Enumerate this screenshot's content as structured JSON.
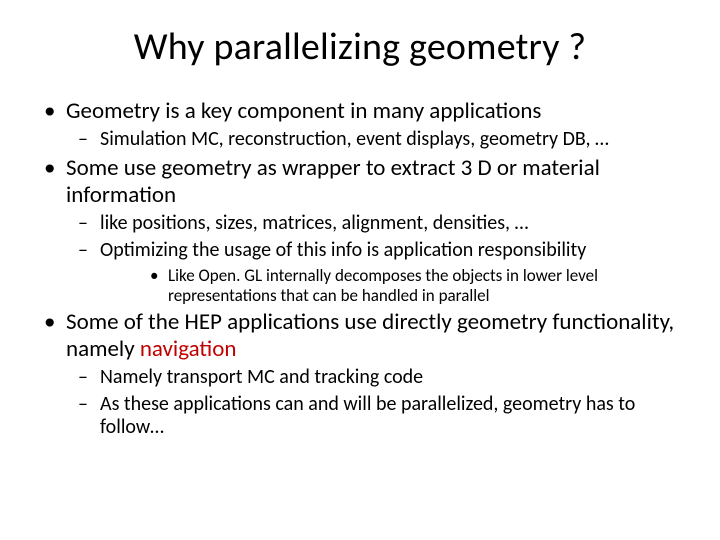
{
  "colors": {
    "background": "#ffffff",
    "text": "#000000",
    "accent": "#c00000"
  },
  "typography": {
    "title_fontsize": 38,
    "lvl1_fontsize": 23,
    "lvl2_fontsize": 20,
    "lvl3_fontsize": 17,
    "font_family": "Calibri"
  },
  "title": "Why parallelizing geometry ?",
  "b1": "Geometry is a key component in many applications",
  "b1_1": "Simulation MC, reconstruction, event displays, geometry DB, …",
  "b2": "Some use geometry as wrapper to extract 3 D or material information",
  "b2_1": "like positions, sizes, matrices, alignment, densities, …",
  "b2_2": "Optimizing the usage of this info is application responsibility",
  "b2_2_1": "Like Open. GL internally decomposes the objects in lower level representations that can be handled in parallel",
  "b3_pre": "Some of the HEP applications use directly geometry functionality, namely ",
  "b3_accent": "navigation",
  "b3_1": "Namely transport MC and tracking code",
  "b3_2": "As these applications can and will be parallelized, geometry has to follow…"
}
